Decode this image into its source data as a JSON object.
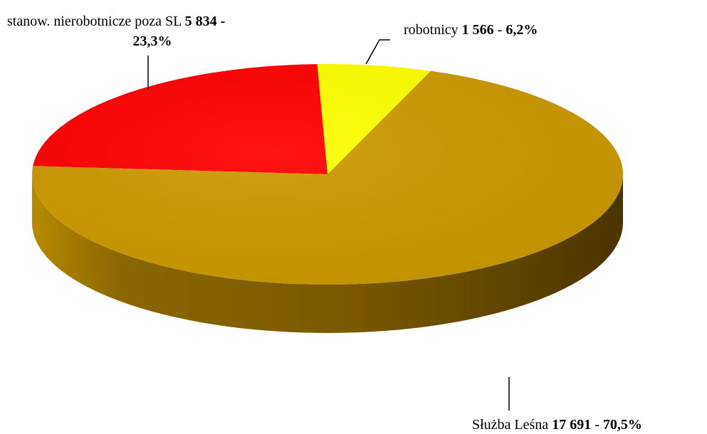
{
  "chart_data": {
    "type": "pie",
    "categories": [
      "robotnicy",
      "stanow. nierobotnicze poza SL",
      "Służba Leśna"
    ],
    "values": [
      1566,
      5834,
      17691
    ],
    "value_labels": [
      "1 566",
      "5 834",
      "17 691"
    ],
    "percent_labels": [
      "6,2%",
      "23,3%",
      "70,5%"
    ],
    "separator": "-",
    "colors": [
      "#ffff00",
      "#ff0000",
      "#cc9900"
    ]
  }
}
